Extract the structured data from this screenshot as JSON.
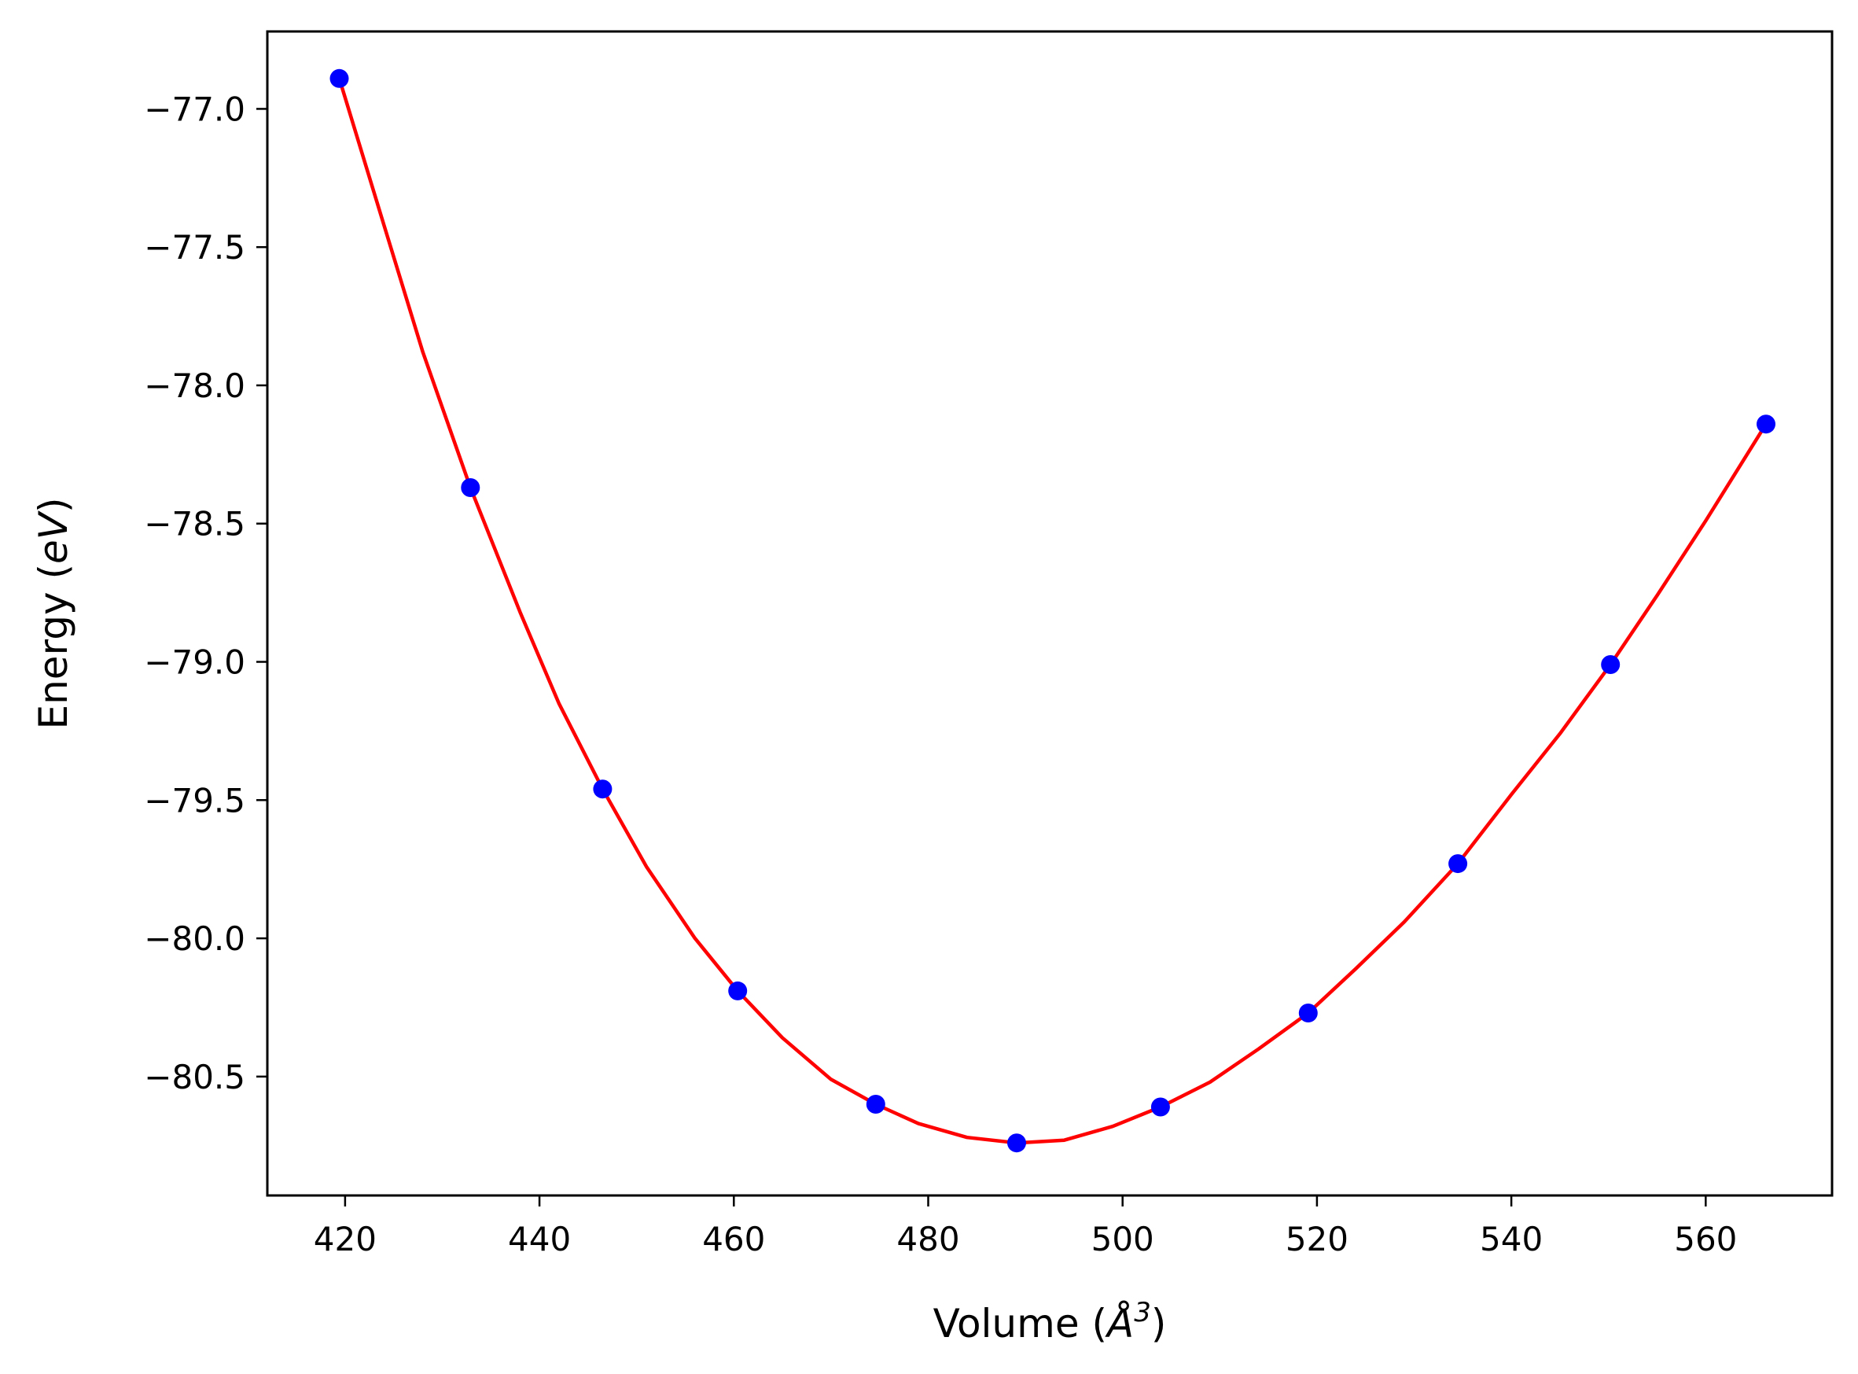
{
  "chart_data": {
    "type": "scatter",
    "title": "",
    "xlabel_parts": {
      "prefix": "Volume (",
      "symbol": "Å",
      "superscript": "3",
      "suffix": ")"
    },
    "ylabel_parts": {
      "prefix": "Energy (",
      "symbol": "eV",
      "suffix": ")"
    },
    "xlim": [
      412,
      573
    ],
    "ylim": [
      -80.93,
      -76.72
    ],
    "xticks": [
      420,
      440,
      460,
      480,
      500,
      520,
      540,
      560
    ],
    "yticks": [
      -77.0,
      -77.5,
      -78.0,
      -78.5,
      -79.0,
      -79.5,
      -80.0,
      -80.5
    ],
    "xtick_labels": [
      "420",
      "440",
      "460",
      "480",
      "500",
      "520",
      "540",
      "560"
    ],
    "ytick_labels": [
      "−77.0",
      "−77.5",
      "−78.0",
      "−78.5",
      "−79.0",
      "−79.5",
      "−80.0",
      "−80.5"
    ],
    "grid": false,
    "legend": "none",
    "series": [
      {
        "kind": "points",
        "color": "#0000ff",
        "x": [
          419.4,
          432.9,
          446.5,
          460.4,
          474.6,
          489.1,
          503.9,
          519.1,
          534.5,
          550.2,
          566.2
        ],
        "y": [
          -76.89,
          -78.37,
          -79.46,
          -80.19,
          -80.6,
          -80.74,
          -80.61,
          -80.27,
          -79.73,
          -79.01,
          -78.14
        ]
      },
      {
        "kind": "fit-curve",
        "color": "#ff0000",
        "x": [
          419.4,
          424,
          428,
          432.9,
          438,
          442,
          446.5,
          451,
          456,
          460.4,
          465,
          470,
          474.6,
          479,
          484,
          489.1,
          494,
          499,
          503.9,
          509,
          514,
          519.1,
          524,
          529,
          534.5,
          540,
          545,
          550.2,
          555,
          560,
          566.2
        ],
        "y": [
          -76.89,
          -77.42,
          -77.88,
          -78.37,
          -78.82,
          -79.15,
          -79.46,
          -79.74,
          -80.0,
          -80.19,
          -80.36,
          -80.51,
          -80.6,
          -80.67,
          -80.72,
          -80.74,
          -80.73,
          -80.68,
          -80.61,
          -80.52,
          -80.4,
          -80.27,
          -80.11,
          -79.94,
          -79.73,
          -79.48,
          -79.26,
          -79.01,
          -78.76,
          -78.49,
          -78.14
        ]
      }
    ]
  }
}
